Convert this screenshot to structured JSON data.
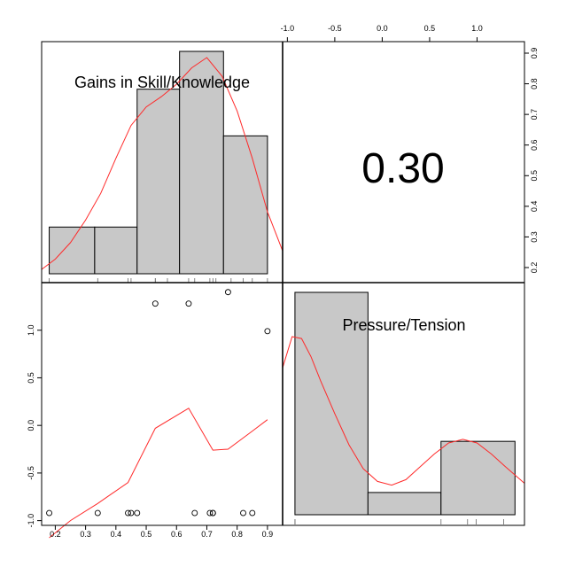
{
  "chart_data": {
    "type": "scatter",
    "variables": [
      "Gains in Skill/Knowledge",
      "Pressure/Tension"
    ],
    "correlation_label": "0.30",
    "colors": {
      "bar_fill": "#c8c8c8",
      "density": "#ff2a2a",
      "axis": "#000000"
    },
    "var1": {
      "name": "Gains in Skill/Knowledge",
      "ticks": [
        "0.2",
        "0.3",
        "0.4",
        "0.5",
        "0.6",
        "0.7",
        "0.8",
        "0.9"
      ],
      "xlim": [
        0.155,
        0.95
      ],
      "hist": {
        "breaks": [
          0.18,
          0.33,
          0.47,
          0.61,
          0.755,
          0.9
        ],
        "heights": [
          0.21,
          0.21,
          0.83,
          1.0,
          0.62
        ]
      },
      "rug": [
        0.18,
        0.34,
        0.44,
        0.45,
        0.53,
        0.53,
        0.57,
        0.64,
        0.66,
        0.71,
        0.72,
        0.73,
        0.78,
        0.82,
        0.85,
        0.9
      ],
      "density": {
        "x": [
          0.155,
          0.2,
          0.25,
          0.3,
          0.35,
          0.4,
          0.45,
          0.5,
          0.55,
          0.6,
          0.65,
          0.7,
          0.75,
          0.8,
          0.85,
          0.9,
          0.95
        ],
        "y": [
          0.06,
          0.11,
          0.19,
          0.3,
          0.43,
          0.6,
          0.76,
          0.85,
          0.9,
          0.96,
          1.04,
          1.09,
          1.0,
          0.83,
          0.6,
          0.34,
          0.15
        ]
      }
    },
    "var2": {
      "name": "Pressure/Tension",
      "ticks": [
        "-1.0",
        "-0.5",
        "0.0",
        "0.5",
        "1.0"
      ],
      "xlim": [
        -1.05,
        1.5
      ],
      "hist": {
        "breaks": [
          -0.92,
          -0.15,
          0.62,
          1.4
        ],
        "heights": [
          1.0,
          0.1,
          0.33
        ]
      },
      "rug": [
        -0.92,
        -0.92,
        0.62,
        0.9,
        0.99,
        1.28
      ],
      "density": {
        "x": [
          -1.05,
          -0.95,
          -0.85,
          -0.75,
          -0.65,
          -0.5,
          -0.35,
          -0.2,
          -0.05,
          0.1,
          0.25,
          0.4,
          0.55,
          0.7,
          0.85,
          1.0,
          1.15,
          1.3,
          1.5
        ],
        "y": [
          0.7,
          0.87,
          0.86,
          0.76,
          0.63,
          0.45,
          0.28,
          0.15,
          0.08,
          0.06,
          0.09,
          0.16,
          0.23,
          0.29,
          0.31,
          0.29,
          0.23,
          0.16,
          0.07
        ]
      }
    },
    "points": [
      {
        "x": 0.18,
        "y": -0.92
      },
      {
        "x": 0.34,
        "y": -0.92
      },
      {
        "x": 0.44,
        "y": -0.92
      },
      {
        "x": 0.45,
        "y": -0.92
      },
      {
        "x": 0.47,
        "y": -0.92
      },
      {
        "x": 0.53,
        "y": 1.28
      },
      {
        "x": 0.64,
        "y": 1.28
      },
      {
        "x": 0.66,
        "y": -0.92
      },
      {
        "x": 0.71,
        "y": -0.92
      },
      {
        "x": 0.72,
        "y": -0.92
      },
      {
        "x": 0.72,
        "y": -0.92
      },
      {
        "x": 0.77,
        "y": 1.4
      },
      {
        "x": 0.82,
        "y": -0.92
      },
      {
        "x": 0.85,
        "y": -0.92
      },
      {
        "x": 0.9,
        "y": 0.99
      }
    ],
    "smooth": {
      "x": [
        0.18,
        0.25,
        0.34,
        0.44,
        0.53,
        0.64,
        0.72,
        0.77,
        0.85,
        0.9
      ],
      "y": [
        -1.18,
        -1.0,
        -0.82,
        -0.6,
        -0.03,
        0.18,
        -0.26,
        -0.25,
        -0.06,
        0.06
      ]
    },
    "scatter_ylim": [
      -1.05,
      1.5
    ],
    "scatter_yticks": [
      "-1.0",
      "-0.5",
      "0.0",
      "0.5",
      "1.0"
    ]
  }
}
